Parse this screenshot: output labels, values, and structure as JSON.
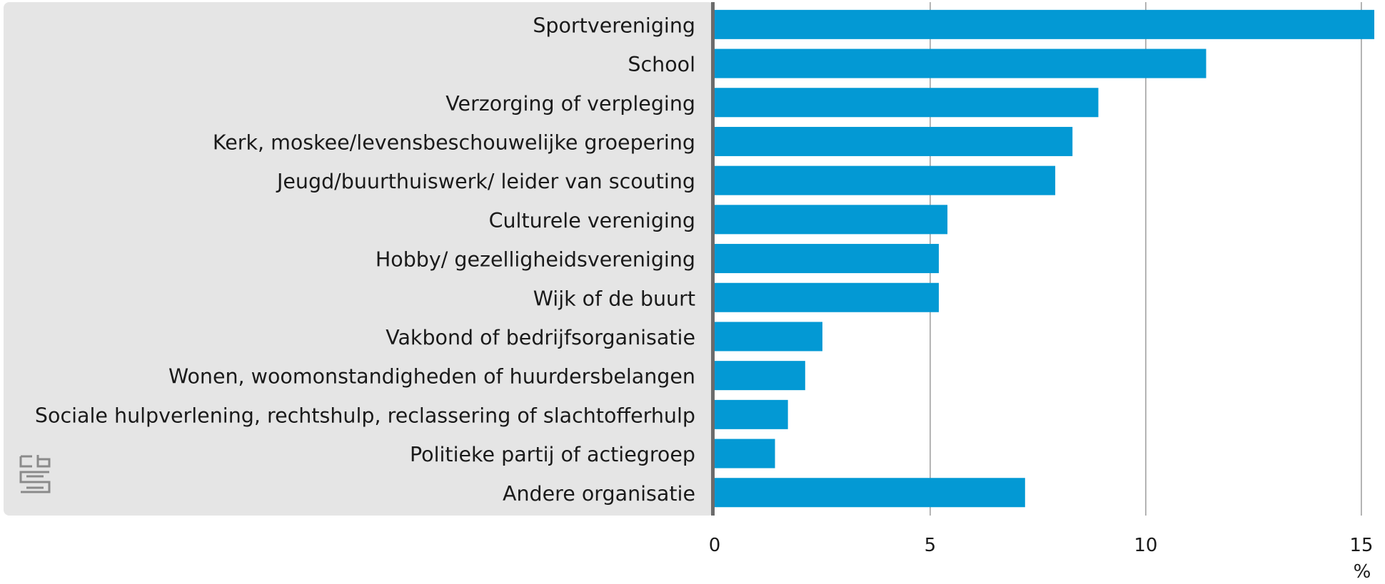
{
  "chart_data": {
    "type": "bar",
    "orientation": "horizontal",
    "categories": [
      "Sportvereniging",
      "School",
      "Verzorging of verpleging",
      "Kerk, moskee/levensbeschouwelijke groepering",
      "Jeugd/buurthuiswerk/ leider van scouting",
      "Culturele vereniging",
      "Hobby/ gezelligheidsvereniging",
      "Wijk of de buurt",
      "Vakbond of bedrijfsorganisatie",
      "Wonen, woomonstandigheden of huurdersbelangen",
      "Sociale hulpverlening, rechtshulp, reclassering of slachtofferhulp",
      "Politieke partij of actiegroep",
      "Andere organisatie"
    ],
    "values": [
      15.3,
      11.4,
      8.9,
      8.3,
      7.9,
      5.4,
      5.2,
      5.2,
      2.5,
      2.1,
      1.7,
      1.4,
      7.2
    ],
    "title": "",
    "xlabel": "%",
    "ylabel": "",
    "xlim": [
      0,
      15.3
    ],
    "x_ticks": [
      0,
      5,
      10,
      15
    ],
    "grid": true,
    "bar_color": "#0399d4",
    "label_panel_color": "#e5e5e5",
    "axis_color": "#6b6b6b",
    "logo": "cbs-logo-icon"
  }
}
